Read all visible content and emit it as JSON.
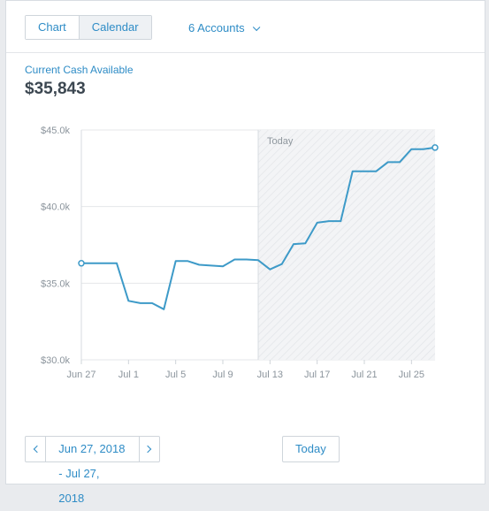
{
  "tabs": [
    {
      "label": "Chart",
      "active": false
    },
    {
      "label": "Calendar",
      "active": true
    }
  ],
  "accounts_label": "6 Accounts",
  "cash": {
    "label": "Current Cash Available",
    "value": "$35,843"
  },
  "colors": {
    "accent": "#2e8cc6",
    "line": "#3d9ac8",
    "future_shade": "#f2f3f5"
  },
  "chart_data": {
    "type": "line",
    "title": "",
    "xlabel": "",
    "ylabel": "",
    "ylim": [
      30000,
      45000
    ],
    "y_ticks": [
      30000,
      35000,
      40000,
      45000
    ],
    "y_tick_labels": [
      "$30.0k",
      "$35.0k",
      "$40.0k",
      "$45.0k"
    ],
    "x_tick_labels": [
      "Jun 27",
      "Jul 1",
      "Jul 5",
      "Jul 9",
      "Jul 13",
      "Jul 17",
      "Jul 21",
      "Jul 25"
    ],
    "x_tick_dates": [
      "2018-06-27",
      "2018-07-01",
      "2018-07-05",
      "2018-07-09",
      "2018-07-13",
      "2018-07-17",
      "2018-07-21",
      "2018-07-25"
    ],
    "x_range": [
      "2018-06-27",
      "2018-07-27"
    ],
    "grid": true,
    "today_marker": {
      "label": "Today",
      "date": "2018-07-12"
    },
    "series": [
      {
        "dates": [
          "2018-06-27",
          "2018-06-28",
          "2018-06-29",
          "2018-06-30",
          "2018-07-01",
          "2018-07-02",
          "2018-07-03",
          "2018-07-04",
          "2018-07-05",
          "2018-07-06",
          "2018-07-07",
          "2018-07-08",
          "2018-07-09",
          "2018-07-10",
          "2018-07-11",
          "2018-07-12",
          "2018-07-13",
          "2018-07-14",
          "2018-07-15",
          "2018-07-16",
          "2018-07-17",
          "2018-07-18",
          "2018-07-19",
          "2018-07-20",
          "2018-07-21",
          "2018-07-22",
          "2018-07-23",
          "2018-07-24",
          "2018-07-25",
          "2018-07-26",
          "2018-07-27"
        ],
        "values": [
          36300,
          36300,
          36300,
          36300,
          33850,
          33700,
          33700,
          33300,
          36450,
          36450,
          36200,
          36150,
          36100,
          36550,
          36550,
          36500,
          35900,
          36250,
          37550,
          37600,
          38950,
          39050,
          39050,
          42300,
          42300,
          42300,
          42900,
          42900,
          43750,
          43750,
          43850
        ]
      }
    ]
  },
  "footer": {
    "date_range": "Jun 27, 2018 - Jul 27, 2018",
    "today_label": "Today"
  }
}
